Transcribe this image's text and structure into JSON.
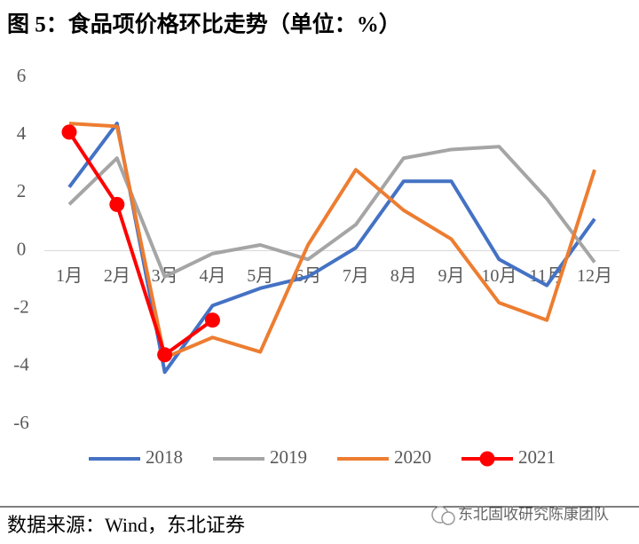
{
  "chart_data": {
    "type": "line",
    "title": "图 5：食品项价格环比走势（单位：%）",
    "categories": [
      "1月",
      "2月",
      "3月",
      "4月",
      "5月",
      "6月",
      "7月",
      "8月",
      "9月",
      "10月",
      "11月",
      "12月"
    ],
    "series": [
      {
        "name": "2018",
        "color": "#4472c4",
        "values": [
          2.2,
          4.4,
          -4.2,
          -1.9,
          -1.3,
          -0.9,
          0.1,
          2.4,
          2.4,
          -0.3,
          -1.2,
          1.1
        ]
      },
      {
        "name": "2019",
        "color": "#a5a5a5",
        "values": [
          1.6,
          3.2,
          -0.9,
          -0.1,
          0.2,
          -0.3,
          0.9,
          3.2,
          3.5,
          3.6,
          1.8,
          -0.4
        ]
      },
      {
        "name": "2020",
        "color": "#ed7d31",
        "values": [
          4.4,
          4.3,
          -3.7,
          -3.0,
          -3.5,
          0.2,
          2.8,
          1.4,
          0.4,
          -1.8,
          -2.4,
          2.8
        ]
      },
      {
        "name": "2021",
        "color": "#ff0000",
        "markers": true,
        "values": [
          4.1,
          1.6,
          -3.6,
          -2.4,
          null,
          null,
          null,
          null,
          null,
          null,
          null,
          null
        ]
      }
    ],
    "ylim": [
      -6,
      6
    ],
    "yticks": [
      -6,
      -4,
      -2,
      0,
      2,
      4,
      6
    ],
    "grid": false,
    "legend": "bottom",
    "source": "数据来源：Wind，东北证券",
    "watermark": "东北固收研究陈康团队"
  }
}
